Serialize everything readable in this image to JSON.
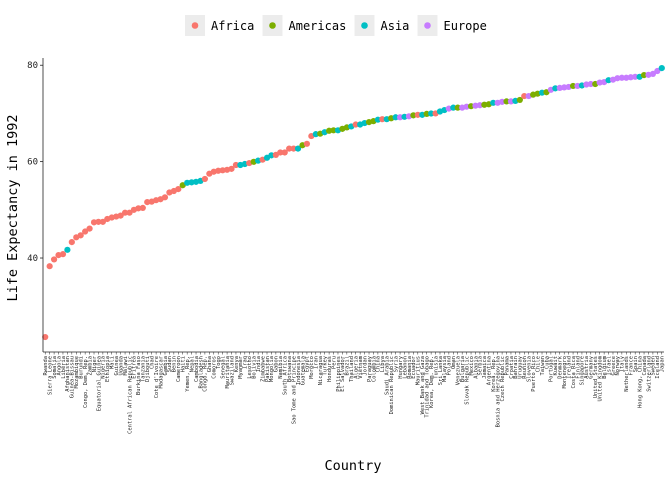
{
  "chart_data": {
    "type": "scatter",
    "title": "",
    "xlabel": "Country",
    "ylabel": "Life Expectancy in 1992",
    "ylim": [
      20.5,
      81.5
    ],
    "yticks": [
      40,
      60,
      80
    ],
    "grid": false,
    "legend_position": "top",
    "colors": {
      "Africa": "#F8766D",
      "Americas": "#7CAE00",
      "Asia": "#00BFC4",
      "Europe": "#C77CFF"
    },
    "legend": [
      "Africa",
      "Americas",
      "Asia",
      "Europe"
    ],
    "points": [
      [
        "Rwanda",
        23.6,
        "Africa"
      ],
      [
        "Somalia",
        39.7,
        "Africa"
      ],
      [
        "Sierra Leone",
        38.3,
        "Africa"
      ],
      [
        "Zambia",
        46.1,
        "Africa"
      ],
      [
        "Afghanistan",
        41.7,
        "Asia"
      ],
      [
        "Liberia",
        40.8,
        "Africa"
      ],
      [
        "Angola",
        40.6,
        "Africa"
      ],
      [
        "Mozambique",
        44.3,
        "Africa"
      ],
      [
        "Guinea-Bissau",
        43.3,
        "Africa"
      ],
      [
        "Uganda",
        48.8,
        "Africa"
      ],
      [
        "Malawi",
        49.4,
        "Africa"
      ],
      [
        "Congo, Dem. Rep.",
        45.5,
        "Africa"
      ],
      [
        "Zimbabwe",
        60.4,
        "Africa"
      ],
      [
        "Burundi",
        44.7,
        "Africa"
      ],
      [
        "Equatorial Guinea",
        47.5,
        "Africa"
      ],
      [
        "Ethiopia",
        48.1,
        "Africa"
      ],
      [
        "Mali",
        48.4,
        "Africa"
      ],
      [
        "Niger",
        47.4,
        "Africa"
      ],
      [
        "Tanzania",
        50.4,
        "Africa"
      ],
      [
        "Central African Republic",
        49.4,
        "Africa"
      ],
      [
        "Chad",
        51.7,
        "Africa"
      ],
      [
        "Nigeria",
        47.5,
        "Africa"
      ],
      [
        "Guinea",
        48.6,
        "Africa"
      ],
      [
        "Burkina Faso",
        50.3,
        "Africa"
      ],
      [
        "Djibouti",
        51.6,
        "Africa"
      ],
      [
        "Cote d'Ivoire",
        52.0,
        "Africa"
      ],
      [
        "Botswana",
        62.7,
        "Africa"
      ],
      [
        "Cameroon",
        54.3,
        "Africa"
      ],
      [
        "Mauritania",
        58.3,
        "Africa"
      ],
      [
        "Gambia",
        52.6,
        "Africa"
      ],
      [
        "Lesotho",
        59.7,
        "Africa"
      ],
      [
        "Namibia",
        61.9,
        "Africa"
      ],
      [
        "Swaziland",
        58.5,
        "Africa"
      ],
      [
        "Kenya",
        59.3,
        "Africa"
      ],
      [
        "Haiti",
        55.1,
        "Americas"
      ],
      [
        "Cambodia",
        55.8,
        "Asia"
      ],
      [
        "Yemen, Rep.",
        55.6,
        "Asia"
      ],
      [
        "Myanmar",
        59.3,
        "Asia"
      ],
      [
        "Bangladesh",
        56.0,
        "Asia"
      ],
      [
        "Nepal",
        55.7,
        "Asia"
      ],
      [
        "Senegal",
        58.2,
        "Africa"
      ],
      [
        "Benin",
        53.9,
        "Africa"
      ],
      [
        "Congo, Rep.",
        56.4,
        "Africa"
      ],
      [
        "South Africa",
        61.9,
        "Africa"
      ],
      [
        "Togo",
        58.1,
        "Africa"
      ],
      [
        "Sudan",
        53.6,
        "Africa"
      ],
      [
        "Madagascar",
        52.2,
        "Africa"
      ],
      [
        "Ghana",
        57.5,
        "Africa"
      ],
      [
        "Gabon",
        61.4,
        "Africa"
      ],
      [
        "India",
        60.2,
        "Asia"
      ],
      [
        "Pakistan",
        60.8,
        "Asia"
      ],
      [
        "Eritrea",
        49.99,
        "Africa"
      ],
      [
        "Mongolia",
        61.3,
        "Asia"
      ],
      [
        "Bolivia",
        59.96,
        "Americas"
      ],
      [
        "Sao Tome and Principe",
        62.7,
        "Africa"
      ],
      [
        "Comoros",
        57.9,
        "Africa"
      ],
      [
        "Iraq",
        59.5,
        "Asia"
      ],
      [
        "Egypt",
        63.7,
        "Africa"
      ],
      [
        "Guatemala",
        63.4,
        "Americas"
      ],
      [
        "Morocco",
        65.3,
        "Africa"
      ],
      [
        "Libya",
        68.8,
        "Africa"
      ],
      [
        "Algeria",
        67.7,
        "Africa"
      ],
      [
        "Honduras",
        66.4,
        "Americas"
      ],
      [
        "Indonesia",
        62.7,
        "Asia"
      ],
      [
        "Nicaragua",
        65.8,
        "Americas"
      ],
      [
        "Brazil",
        67.1,
        "Americas"
      ],
      [
        "Peru",
        66.5,
        "Americas"
      ],
      [
        "Korea, Dem. Rep.",
        69.98,
        "Asia"
      ],
      [
        "Philippines",
        66.5,
        "Asia"
      ],
      [
        "El Salvador",
        66.8,
        "Americas"
      ],
      [
        "Tunisia",
        70.0,
        "Africa"
      ],
      [
        "Dominican Republic",
        69.0,
        "Americas"
      ],
      [
        "Iran",
        65.7,
        "Asia"
      ],
      [
        "Turkey",
        66.1,
        "Asia"
      ],
      [
        "Thailand",
        67.3,
        "Asia"
      ],
      [
        "Vietnam",
        67.7,
        "Asia"
      ],
      [
        "Lebanon",
        69.3,
        "Asia"
      ],
      [
        "Colombia",
        68.4,
        "Americas"
      ],
      [
        "Ecuador",
        69.6,
        "Americas"
      ],
      [
        "Paraguay",
        68.2,
        "Americas"
      ],
      [
        "Saudi Arabia",
        68.8,
        "Asia"
      ],
      [
        "Mauritius",
        69.7,
        "Africa"
      ],
      [
        "Trinidad and Tobago",
        69.9,
        "Americas"
      ],
      [
        "West Bank and Gaza",
        69.7,
        "Asia"
      ],
      [
        "Reunion",
        73.6,
        "Africa"
      ],
      [
        "Jordan",
        68.0,
        "Asia"
      ],
      [
        "Syria",
        69.2,
        "Asia"
      ],
      [
        "Korea, Rep.",
        72.2,
        "Asia"
      ],
      [
        "Albania",
        71.6,
        "Europe"
      ],
      [
        "Sri Lanka",
        70.4,
        "Asia"
      ],
      [
        "Oman",
        71.2,
        "Asia"
      ],
      [
        "Mexico",
        71.5,
        "Americas"
      ],
      [
        "Malaysia",
        70.7,
        "Asia"
      ],
      [
        "China",
        68.7,
        "Asia"
      ],
      [
        "Venezuela",
        71.2,
        "Americas"
      ],
      [
        "Romania",
        69.4,
        "Europe"
      ],
      [
        "Jamaica",
        71.8,
        "Americas"
      ],
      [
        "Bulgaria",
        71.2,
        "Europe"
      ],
      [
        "Montenegro",
        75.4,
        "Europe"
      ],
      [
        "Serbia",
        71.7,
        "Europe"
      ],
      [
        "Slovak Republic",
        71.4,
        "Europe"
      ],
      [
        "Argentina",
        71.9,
        "Americas"
      ],
      [
        "Hungary",
        69.2,
        "Europe"
      ],
      [
        "Uruguay",
        72.8,
        "Americas"
      ],
      [
        "Panama",
        72.5,
        "Americas"
      ],
      [
        "Bahrain",
        72.6,
        "Asia"
      ],
      [
        "Croatia",
        72.5,
        "Europe"
      ],
      [
        "Bosnia and Herzegovina",
        72.2,
        "Europe"
      ],
      [
        "Poland",
        71.0,
        "Europe"
      ],
      [
        "Chile",
        74.1,
        "Americas"
      ],
      [
        "Czech Republic",
        72.4,
        "Europe"
      ],
      [
        "Slovenia",
        73.6,
        "Europe"
      ],
      [
        "Costa Rica",
        75.7,
        "Americas"
      ],
      [
        "Kuwait",
        75.2,
        "Asia"
      ],
      [
        "Cuba",
        74.4,
        "Americas"
      ],
      [
        "Portugal",
        74.9,
        "Europe"
      ],
      [
        "Ireland",
        75.5,
        "Europe"
      ],
      [
        "Taiwan",
        74.3,
        "Asia"
      ],
      [
        "Puerto Rico",
        73.9,
        "Americas"
      ],
      [
        "Singapore",
        75.8,
        "Asia"
      ],
      [
        "Finland",
        75.7,
        "Europe"
      ],
      [
        "Germany",
        76.1,
        "Europe"
      ],
      [
        "United States",
        76.1,
        "Americas"
      ],
      [
        "Israel",
        76.9,
        "Asia"
      ],
      [
        "Belgium",
        76.5,
        "Europe"
      ],
      [
        "Denmark",
        75.3,
        "Europe"
      ],
      [
        "United Kingdom",
        76.4,
        "Europe"
      ],
      [
        "Austria",
        76.0,
        "Europe"
      ],
      [
        "Greece",
        77.0,
        "Europe"
      ],
      [
        "Norway",
        77.3,
        "Europe"
      ],
      [
        "Italy",
        77.4,
        "Europe"
      ],
      [
        "Spain",
        77.6,
        "Europe"
      ],
      [
        "Netherlands",
        77.4,
        "Europe"
      ],
      [
        "Canada",
        77.95,
        "Americas"
      ],
      [
        "France",
        77.5,
        "Europe"
      ],
      [
        "Iceland",
        78.8,
        "Europe"
      ],
      [
        "Sweden",
        78.2,
        "Europe"
      ],
      [
        "Switzerland",
        78.0,
        "Europe"
      ],
      [
        "Hong Kong, China",
        77.6,
        "Asia"
      ],
      [
        "Japan",
        79.4,
        "Asia"
      ]
    ]
  }
}
